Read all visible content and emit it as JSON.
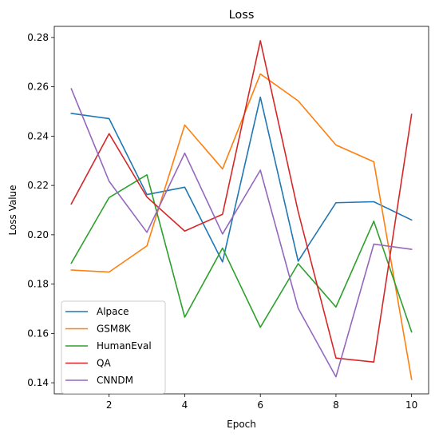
{
  "chart_data": {
    "type": "line",
    "title": "Loss",
    "xlabel": "Epoch",
    "ylabel": "Loss Value",
    "x": [
      1,
      2,
      3,
      4,
      5,
      6,
      7,
      8,
      9,
      10
    ],
    "xlim": [
      0.55,
      10.45
    ],
    "ylim": [
      0.1355,
      0.2845
    ],
    "xticks": [
      2,
      4,
      6,
      8,
      10
    ],
    "yticks": [
      0.14,
      0.16,
      0.18,
      0.2,
      0.22,
      0.24,
      0.26,
      0.28
    ],
    "ytick_labels": [
      "0.14",
      "0.16",
      "0.18",
      "0.20",
      "0.22",
      "0.24",
      "0.26",
      "0.28"
    ],
    "grid": false,
    "legend_position": "lower-left",
    "series": [
      {
        "name": "Alpace",
        "color": "#1f77b4",
        "values": [
          0.2492,
          0.2471,
          0.2163,
          0.2193,
          0.189,
          0.2558,
          0.1893,
          0.213,
          0.2134,
          0.206
        ]
      },
      {
        "name": "GSM8K",
        "color": "#ff7f0e",
        "values": [
          0.1857,
          0.1849,
          0.1955,
          0.2445,
          0.2267,
          0.2652,
          0.2543,
          0.2364,
          0.2296,
          0.1414
        ]
      },
      {
        "name": "HumanEval",
        "color": "#2ca02c",
        "values": [
          0.1885,
          0.2151,
          0.2243,
          0.1666,
          0.1946,
          0.1625,
          0.1883,
          0.1707,
          0.2055,
          0.1606
        ]
      },
      {
        "name": "QA",
        "color": "#d62728",
        "values": [
          0.2125,
          0.241,
          0.2153,
          0.2015,
          0.2083,
          0.2787,
          0.2094,
          0.15,
          0.1484,
          0.2488
        ]
      },
      {
        "name": "CNNDM",
        "color": "#9467bd",
        "values": [
          0.2592,
          0.2217,
          0.201,
          0.2331,
          0.2003,
          0.2262,
          0.1702,
          0.1424,
          0.1962,
          0.1941
        ]
      }
    ]
  }
}
